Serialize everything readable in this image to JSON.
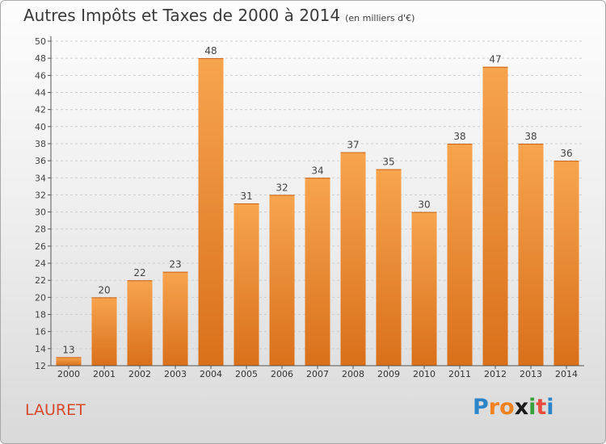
{
  "title": "Autres Impôts et Taxes de 2000 à 2014",
  "subtitle": "(en milliers d'€)",
  "commune": "LAURET",
  "logo": {
    "letters": [
      "P",
      "r",
      "o",
      "x",
      "i",
      "t",
      "i"
    ],
    "colors": [
      "#2c85c9",
      "#f0831f",
      "#f0831f",
      "#1a1a1a",
      "#3aa03a",
      "#e84c3d",
      "#2c85c9"
    ]
  },
  "colors": {
    "bar_light": "#f7a44f",
    "bar_dark": "#d9701a",
    "grid": "#d0d0d0",
    "axis": "#555555",
    "commune": "#d6492d"
  },
  "chart_data": {
    "type": "bar",
    "title": "Autres Impôts et Taxes de 2000 à 2014",
    "subtitle": "(en milliers d'€)",
    "xlabel": "",
    "ylabel": "",
    "ylim": [
      12,
      50
    ],
    "yticks": [
      12,
      14,
      16,
      18,
      20,
      22,
      24,
      26,
      28,
      30,
      32,
      34,
      36,
      38,
      40,
      42,
      44,
      46,
      48,
      50
    ],
    "grid": true,
    "categories": [
      "2000",
      "2001",
      "2002",
      "2003",
      "2004",
      "2005",
      "2006",
      "2007",
      "2008",
      "2009",
      "2010",
      "2011",
      "2012",
      "2013",
      "2014"
    ],
    "values": [
      13,
      20,
      22,
      23,
      48,
      31,
      32,
      34,
      37,
      35,
      30,
      38,
      47,
      38,
      36
    ]
  }
}
